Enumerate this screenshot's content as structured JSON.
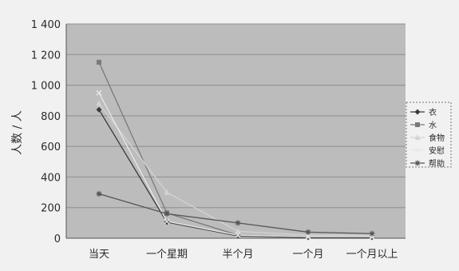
{
  "chart_data": {
    "type": "line",
    "title": "",
    "xlabel": "",
    "ylabel": "人数 / 人",
    "ylim": [
      0,
      1400
    ],
    "yticks": [
      0,
      200,
      400,
      600,
      800,
      1000,
      1200,
      1400
    ],
    "yticklabels": [
      "0",
      "200",
      "400",
      "600",
      "800",
      "1 000",
      "1 200",
      "1 400"
    ],
    "grid": true,
    "legend_position": "right",
    "categories": [
      "当天",
      "一个星期",
      "半个月",
      "一个月",
      "一个月以上"
    ],
    "series": [
      {
        "name": "衣",
        "values": [
          840,
          105,
          15,
          5,
          5
        ],
        "color": "#3a3a3a",
        "marker": "diamond"
      },
      {
        "name": "水",
        "values": [
          1150,
          165,
          20,
          10,
          10
        ],
        "color": "#7a7a7a",
        "marker": "square"
      },
      {
        "name": "食物",
        "values": [
          880,
          300,
          45,
          20,
          20
        ],
        "color": "#d3d3d3",
        "marker": "triangle"
      },
      {
        "name": "安慰",
        "values": [
          950,
          110,
          20,
          10,
          10
        ],
        "color": "#e8e8e8",
        "marker": "x"
      },
      {
        "name": "帮助",
        "values": [
          290,
          160,
          100,
          40,
          30
        ],
        "color": "#555555",
        "marker": "star"
      }
    ]
  }
}
